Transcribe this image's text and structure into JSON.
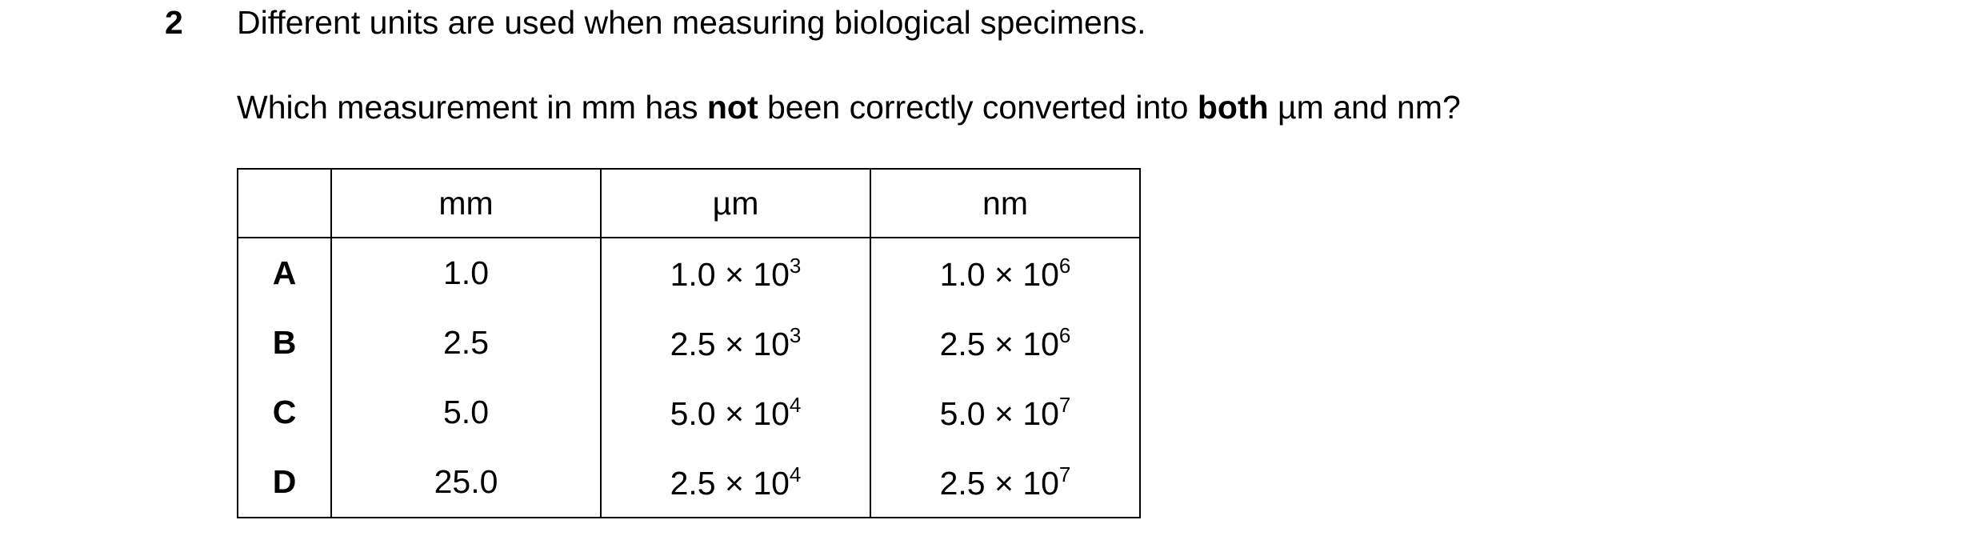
{
  "question": {
    "number": "2",
    "intro": "Different units are used when measuring biological specimens.",
    "prompt": [
      {
        "text": "Which measurement in mm has ",
        "bold": false
      },
      {
        "text": "not",
        "bold": true
      },
      {
        "text": " been correctly converted into ",
        "bold": false
      },
      {
        "text": "both",
        "bold": true
      },
      {
        "text": " µm and nm?",
        "bold": false
      }
    ]
  },
  "table": {
    "header": [
      "mm",
      "µm",
      "nm"
    ],
    "rows": [
      {
        "label": "A",
        "mm": "1.0",
        "um": {
          "base": "1.0 × 10",
          "exponent": "3"
        },
        "nm": {
          "base": "1.0 × 10",
          "exponent": "6"
        }
      },
      {
        "label": "B",
        "mm": "2.5",
        "um": {
          "base": "2.5 × 10",
          "exponent": "3"
        },
        "nm": {
          "base": "2.5 × 10",
          "exponent": "6"
        }
      },
      {
        "label": "C",
        "mm": "5.0",
        "um": {
          "base": "5.0 × 10",
          "exponent": "4"
        },
        "nm": {
          "base": "5.0 × 10",
          "exponent": "7"
        }
      },
      {
        "label": "D",
        "mm": "25.0",
        "um": {
          "base": "2.5 × 10",
          "exponent": "4"
        },
        "nm": {
          "base": "2.5 × 10",
          "exponent": "7"
        }
      }
    ]
  }
}
